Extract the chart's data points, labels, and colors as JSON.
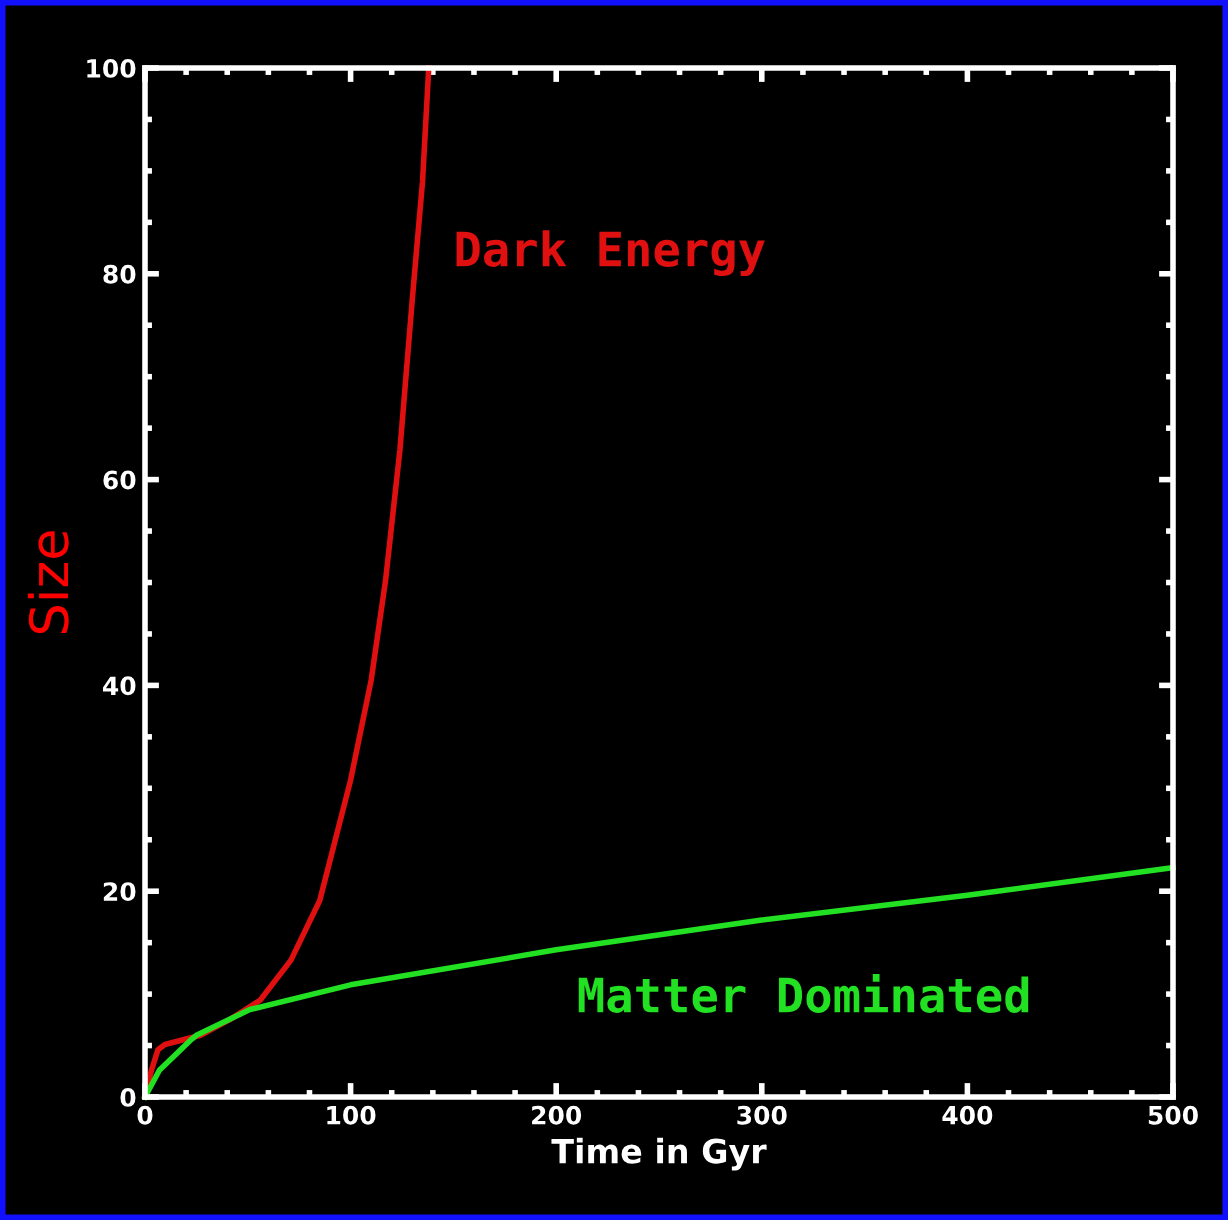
{
  "chart_data": {
    "type": "line",
    "xlabel": "Time in Gyr",
    "ylabel": "Size",
    "xlim": [
      0,
      500
    ],
    "ylim": [
      0,
      100
    ],
    "xticks": [
      0,
      100,
      200,
      300,
      400,
      500
    ],
    "yticks": [
      0,
      20,
      40,
      60,
      80,
      100
    ],
    "grid": false,
    "legend": false,
    "marker": "none",
    "line_style": "solid",
    "series": [
      {
        "name": "Dark Energy",
        "color": "#e01010",
        "x": [
          0,
          3,
          6.3,
          9.7,
          27,
          41,
          56,
          71,
          85,
          100,
          110,
          117,
          124,
          130,
          135,
          138
        ],
        "values": [
          0.2,
          2.5,
          4.6,
          5.1,
          6.0,
          7.5,
          9.4,
          13.3,
          19.1,
          30.8,
          40.5,
          50.2,
          62.9,
          77.5,
          89,
          100
        ]
      },
      {
        "name": "Matter Dominated",
        "color": "#22e022",
        "x": [
          0,
          7,
          22,
          25,
          51,
          100,
          200,
          300,
          400,
          500
        ],
        "values": [
          0,
          2.6,
          5.5,
          6.0,
          8.5,
          10.9,
          14.3,
          17.2,
          19.6,
          22.3
        ]
      }
    ]
  }
}
